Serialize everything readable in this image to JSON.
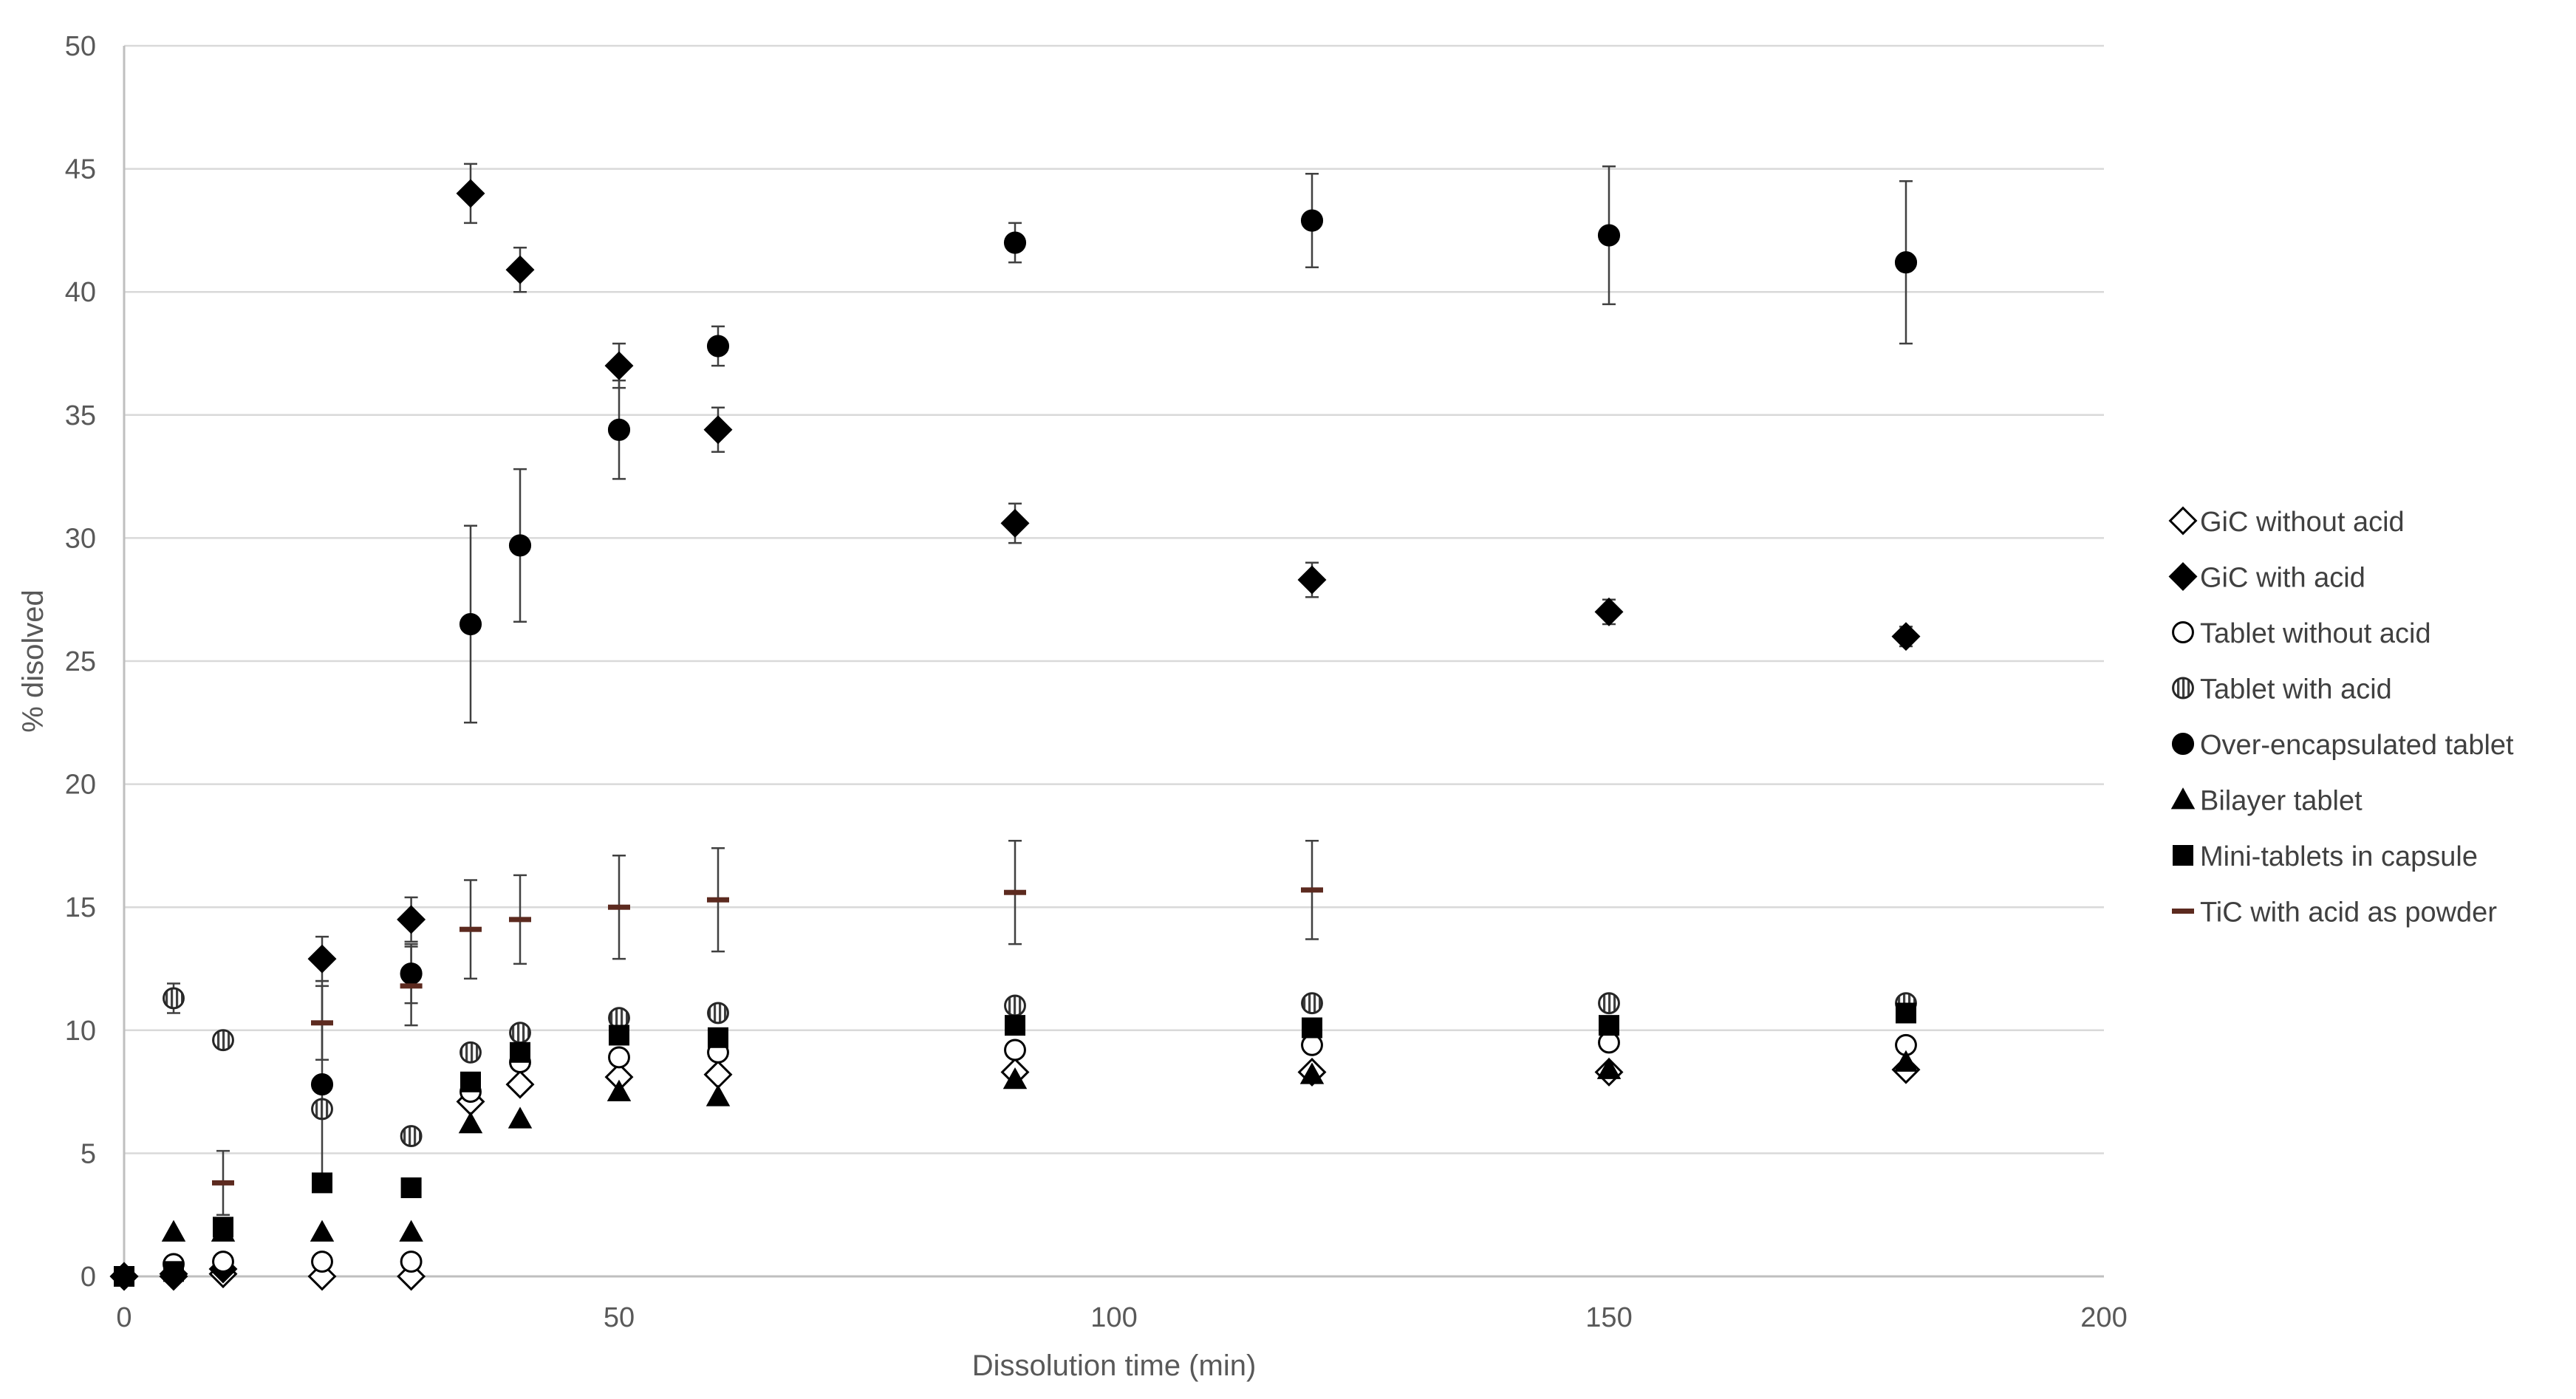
{
  "chart_data": {
    "type": "scatter",
    "title": "",
    "xlabel": "Dissolution time (min)",
    "ylabel": "% disolved",
    "xlim": [
      0,
      200
    ],
    "ylim": [
      0,
      50
    ],
    "xticks": [
      0,
      50,
      100,
      150,
      200
    ],
    "yticks": [
      0,
      5,
      10,
      15,
      20,
      25,
      30,
      35,
      40,
      45,
      50
    ],
    "grid": "horizontal",
    "legend": "right",
    "series": [
      {
        "name": "GiC without acid",
        "marker": "diamond-open",
        "x": [
          0,
          5,
          10,
          20,
          29,
          35,
          40,
          50,
          60,
          90,
          120,
          150,
          180
        ],
        "y": [
          0,
          0,
          0.1,
          0,
          0,
          7.1,
          7.8,
          8.1,
          8.2,
          8.3,
          8.3,
          8.3,
          8.4
        ]
      },
      {
        "name": "GiC with acid",
        "marker": "diamond-filled",
        "x": [
          0,
          5,
          10,
          20,
          29,
          35,
          40,
          50,
          60,
          90,
          120,
          150,
          180
        ],
        "y": [
          0,
          0.1,
          0.3,
          12.9,
          14.5,
          44,
          40.9,
          37,
          34.4,
          30.6,
          28.3,
          27,
          26
        ],
        "err": [
          0,
          0,
          0,
          0.9,
          0.9,
          1.2,
          0.9,
          0.9,
          0.9,
          0.8,
          0.7,
          0.5,
          0.4
        ]
      },
      {
        "name": "Tablet without acid",
        "marker": "circle-open",
        "x": [
          0,
          5,
          10,
          20,
          29,
          35,
          40,
          50,
          60,
          90,
          120,
          150,
          180
        ],
        "y": [
          0,
          0.5,
          0.6,
          0.6,
          0.6,
          7.5,
          8.7,
          8.9,
          9.1,
          9.2,
          9.4,
          9.5,
          9.4
        ]
      },
      {
        "name": "Tablet with acid",
        "marker": "circle-striped",
        "x": [
          5,
          10,
          20,
          29,
          35,
          40,
          50,
          60,
          90,
          120,
          150,
          180
        ],
        "y": [
          11.3,
          9.6,
          6.8,
          5.7,
          9.1,
          9.9,
          10.5,
          10.7,
          11,
          11.1,
          11.1,
          11.1
        ],
        "err": [
          0.6,
          0,
          0,
          0,
          0,
          0,
          0,
          0,
          0,
          0,
          0,
          0
        ]
      },
      {
        "name": "Over-encapsulated tablet",
        "marker": "circle-filled",
        "x": [
          20,
          29,
          35,
          40,
          50,
          60,
          90,
          120,
          150,
          180
        ],
        "y": [
          7.8,
          12.3,
          26.5,
          29.7,
          34.4,
          37.8,
          42,
          42.9,
          42.3,
          41.2
        ],
        "err": [
          4.2,
          1.2,
          4,
          3.1,
          2,
          0.8,
          0.8,
          1.9,
          2.8,
          3.3
        ]
      },
      {
        "name": "Bilayer tablet",
        "marker": "triangle-filled",
        "x": [
          5,
          10,
          20,
          29,
          35,
          40,
          50,
          60,
          90,
          120,
          150,
          180
        ],
        "y": [
          1.8,
          1.8,
          1.8,
          1.8,
          6.2,
          6.4,
          7.5,
          7.3,
          8,
          8.2,
          8.4,
          8.7
        ]
      },
      {
        "name": "Mini-tablets in capsule",
        "marker": "square-filled",
        "x": [
          0,
          5,
          10,
          20,
          29,
          35,
          40,
          50,
          60,
          90,
          120,
          150,
          180
        ],
        "y": [
          0,
          0.2,
          2,
          3.8,
          3.6,
          7.9,
          9.1,
          9.8,
          9.7,
          10.2,
          10.1,
          10.2,
          10.7
        ],
        "err": [
          0,
          0,
          0.3,
          0,
          0,
          0,
          0,
          0,
          0,
          0,
          0,
          0,
          0
        ]
      },
      {
        "name": "TiC with acid as powder",
        "marker": "dash",
        "color": "#5c2a1f",
        "x": [
          10,
          20,
          29,
          35,
          40,
          50,
          60,
          90,
          120
        ],
        "y": [
          3.8,
          10.3,
          11.8,
          14.1,
          14.5,
          15,
          15.3,
          15.6,
          15.7
        ],
        "err": [
          1.3,
          1.5,
          1.6,
          2,
          1.8,
          2.1,
          2.1,
          2.1,
          2
        ]
      }
    ]
  }
}
